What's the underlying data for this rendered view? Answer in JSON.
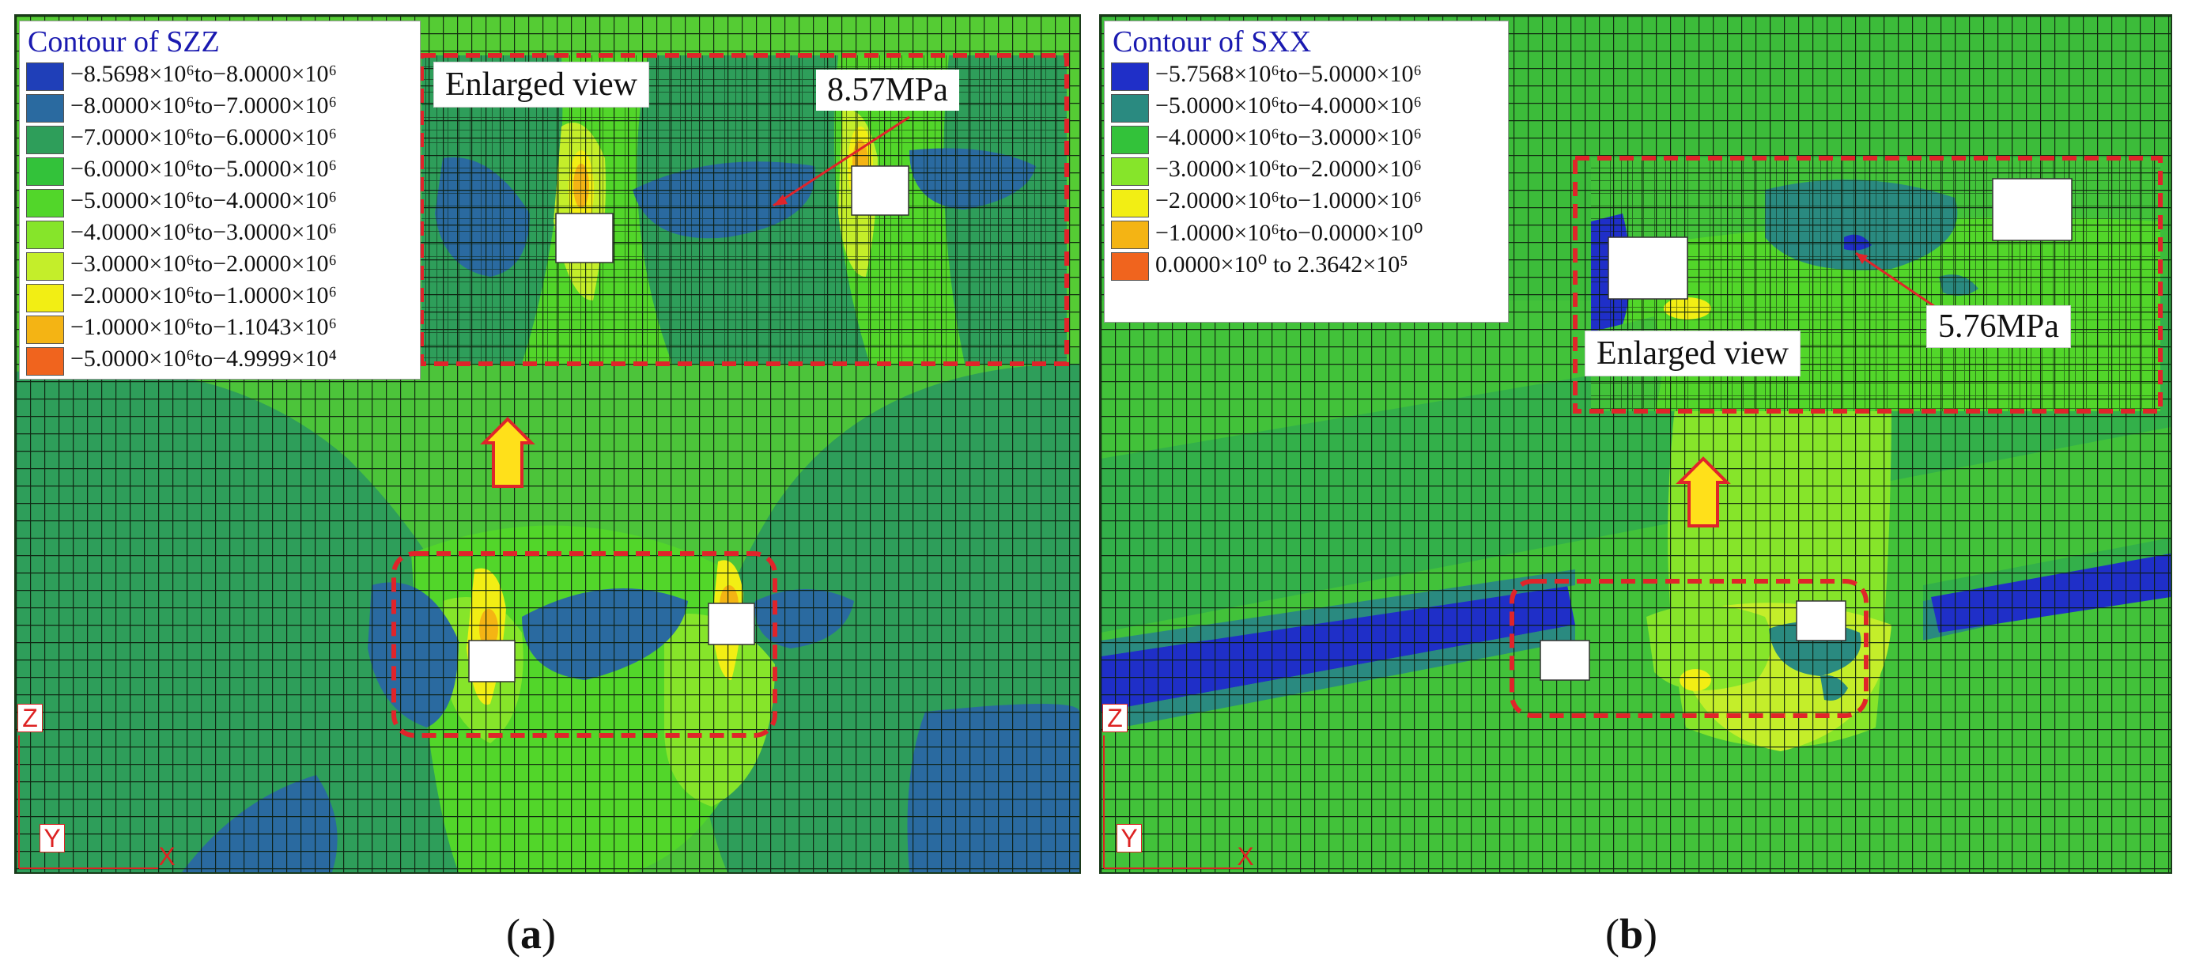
{
  "panels": [
    {
      "id": "a",
      "legend_title": "Contour of SZZ",
      "legend": [
        {
          "label": "−8.5698×10⁶to−8.0000×10⁶",
          "color": "#1f3fb8"
        },
        {
          "label": "−8.0000×10⁶to−7.0000×10⁶",
          "color": "#2a6aa0"
        },
        {
          "label": "−7.0000×10⁶to−6.0000×10⁶",
          "color": "#2e9e5a"
        },
        {
          "label": "−6.0000×10⁶to−5.0000×10⁶",
          "color": "#33c23a"
        },
        {
          "label": "−5.0000×10⁶to−4.0000×10⁶",
          "color": "#52d62a"
        },
        {
          "label": "−4.0000×10⁶to−3.0000×10⁶",
          "color": "#86e52a"
        },
        {
          "label": "−3.0000×10⁶to−2.0000×10⁶",
          "color": "#c4ee2a"
        },
        {
          "label": "−2.0000×10⁶to−1.0000×10⁶",
          "color": "#f2ee14"
        },
        {
          "label": "−1.0000×10⁶to−1.1043×10⁶",
          "color": "#f4b414"
        },
        {
          "label": "−5.0000×10⁶to−4.9999×10⁴",
          "color": "#f0641e"
        }
      ],
      "enlarged_label": "Enlarged view",
      "value_label": "8.57MPa",
      "axes": {
        "z": "Z",
        "y": "Y",
        "x": "X"
      },
      "caption_letter": "a"
    },
    {
      "id": "b",
      "legend_title": "Contour of SXX",
      "legend": [
        {
          "label": "−5.7568×10⁶to−5.0000×10⁶",
          "color": "#1f2fc8"
        },
        {
          "label": "−5.0000×10⁶to−4.0000×10⁶",
          "color": "#2a8a80"
        },
        {
          "label": "−4.0000×10⁶to−3.0000×10⁶",
          "color": "#33c23a"
        },
        {
          "label": "−3.0000×10⁶to−2.0000×10⁶",
          "color": "#86e52a"
        },
        {
          "label": "−2.0000×10⁶to−1.0000×10⁶",
          "color": "#f2ee14"
        },
        {
          "label": "−1.0000×10⁶to−0.0000×10⁰",
          "color": "#f4b414"
        },
        {
          "label": "0.0000×10⁰ to  2.3642×10⁵",
          "color": "#f0641e"
        }
      ],
      "enlarged_label": "Enlarged view",
      "value_label": "5.76MPa",
      "axes": {
        "z": "Z",
        "y": "Y",
        "x": "X"
      },
      "caption_letter": "b"
    }
  ],
  "colors": {
    "mesh_line": "#0b1a0b",
    "dashed_box": "#e0242a",
    "arrow_fill": "#ffe01a",
    "arrow_stroke": "#e0242a",
    "label_text_blue": "#1a1ab0"
  }
}
